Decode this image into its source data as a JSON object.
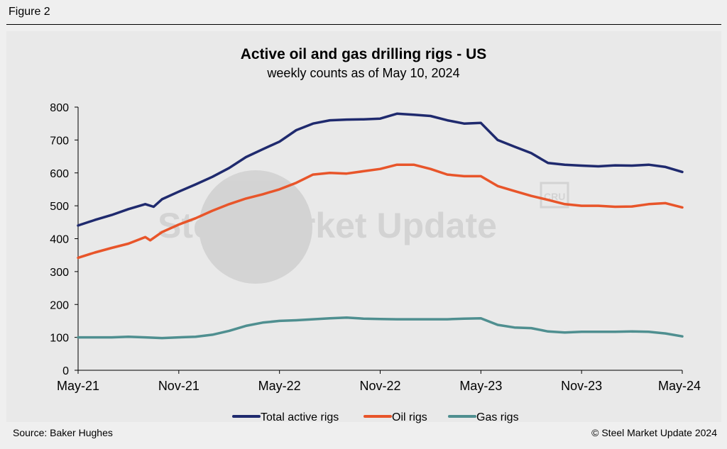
{
  "figure_label": "Figure 2",
  "source": "Source: Baker Hughes",
  "copyright": "© Steel Market Update 2024",
  "watermark": "Steel Market Update",
  "watermark_badge": "CRU",
  "colors": {
    "total": "#1f2a6e",
    "oil": "#e8552a",
    "gas": "#4f8f90",
    "background": "#efefef",
    "plot_bg": "#e9e9e9"
  },
  "chart_data": {
    "type": "line",
    "title": "Active oil and gas drilling rigs - US",
    "subtitle": "weekly counts as of May 10, 2024",
    "xlabel": "",
    "ylabel": "",
    "x_domain": [
      0,
      36
    ],
    "x_ticks": [
      {
        "label": "May-21",
        "value": 0
      },
      {
        "label": "Nov-21",
        "value": 6
      },
      {
        "label": "May-22",
        "value": 12
      },
      {
        "label": "Nov-22",
        "value": 18
      },
      {
        "label": "May-23",
        "value": 24
      },
      {
        "label": "Nov-23",
        "value": 30
      },
      {
        "label": "May-24",
        "value": 36
      }
    ],
    "ylim": [
      0,
      800
    ],
    "y_ticks": [
      0,
      100,
      200,
      300,
      400,
      500,
      600,
      700,
      800
    ],
    "grid": false,
    "legend_position": "bottom",
    "series": [
      {
        "name": "Total active rigs",
        "color": "#1f2a6e",
        "points": [
          [
            0,
            440
          ],
          [
            1,
            457
          ],
          [
            2,
            472
          ],
          [
            3,
            490
          ],
          [
            4,
            505
          ],
          [
            4.5,
            497
          ],
          [
            5,
            520
          ],
          [
            6,
            543
          ],
          [
            7,
            565
          ],
          [
            8,
            588
          ],
          [
            9,
            615
          ],
          [
            10,
            648
          ],
          [
            11,
            672
          ],
          [
            12,
            695
          ],
          [
            13,
            730
          ],
          [
            14,
            750
          ],
          [
            15,
            760
          ],
          [
            16,
            762
          ],
          [
            17,
            763
          ],
          [
            18,
            765
          ],
          [
            19,
            780
          ],
          [
            20,
            777
          ],
          [
            21,
            773
          ],
          [
            22,
            760
          ],
          [
            23,
            750
          ],
          [
            24,
            752
          ],
          [
            25,
            700
          ],
          [
            26,
            680
          ],
          [
            27,
            660
          ],
          [
            28,
            630
          ],
          [
            29,
            625
          ],
          [
            30,
            622
          ],
          [
            31,
            620
          ],
          [
            32,
            623
          ],
          [
            33,
            622
          ],
          [
            34,
            625
          ],
          [
            35,
            618
          ],
          [
            36,
            603
          ]
        ]
      },
      {
        "name": "Oil rigs",
        "color": "#e8552a",
        "points": [
          [
            0,
            342
          ],
          [
            1,
            358
          ],
          [
            2,
            372
          ],
          [
            3,
            385
          ],
          [
            4,
            405
          ],
          [
            4.3,
            395
          ],
          [
            5,
            420
          ],
          [
            6,
            443
          ],
          [
            7,
            462
          ],
          [
            8,
            485
          ],
          [
            9,
            505
          ],
          [
            10,
            522
          ],
          [
            11,
            535
          ],
          [
            12,
            550
          ],
          [
            13,
            570
          ],
          [
            14,
            595
          ],
          [
            15,
            600
          ],
          [
            16,
            598
          ],
          [
            17,
            605
          ],
          [
            18,
            612
          ],
          [
            19,
            625
          ],
          [
            20,
            625
          ],
          [
            21,
            612
          ],
          [
            22,
            595
          ],
          [
            23,
            590
          ],
          [
            24,
            590
          ],
          [
            25,
            560
          ],
          [
            26,
            545
          ],
          [
            27,
            530
          ],
          [
            28,
            518
          ],
          [
            29,
            505
          ],
          [
            30,
            500
          ],
          [
            31,
            500
          ],
          [
            32,
            497
          ],
          [
            33,
            498
          ],
          [
            34,
            505
          ],
          [
            35,
            508
          ],
          [
            36,
            495
          ]
        ]
      },
      {
        "name": "Gas rigs",
        "color": "#4f8f90",
        "points": [
          [
            0,
            100
          ],
          [
            1,
            100
          ],
          [
            2,
            100
          ],
          [
            3,
            102
          ],
          [
            4,
            100
          ],
          [
            5,
            98
          ],
          [
            6,
            100
          ],
          [
            7,
            102
          ],
          [
            8,
            108
          ],
          [
            9,
            120
          ],
          [
            10,
            135
          ],
          [
            11,
            145
          ],
          [
            12,
            150
          ],
          [
            13,
            152
          ],
          [
            14,
            155
          ],
          [
            15,
            158
          ],
          [
            16,
            160
          ],
          [
            17,
            157
          ],
          [
            18,
            156
          ],
          [
            19,
            155
          ],
          [
            20,
            155
          ],
          [
            21,
            155
          ],
          [
            22,
            155
          ],
          [
            23,
            157
          ],
          [
            24,
            158
          ],
          [
            25,
            138
          ],
          [
            26,
            130
          ],
          [
            27,
            128
          ],
          [
            28,
            118
          ],
          [
            29,
            115
          ],
          [
            30,
            117
          ],
          [
            31,
            117
          ],
          [
            32,
            117
          ],
          [
            33,
            118
          ],
          [
            34,
            117
          ],
          [
            35,
            112
          ],
          [
            36,
            103
          ]
        ]
      }
    ]
  }
}
